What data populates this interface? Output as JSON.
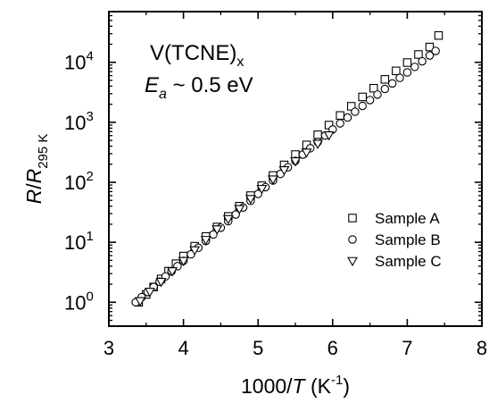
{
  "chart_data": {
    "type": "scatter",
    "x_axis": {
      "label": "1000/T (K⁻¹)",
      "label_parts": {
        "prefix": "1000/",
        "var": "T",
        "suffix_open": " (K",
        "sup": "-1",
        "suffix_close": ")"
      },
      "range": [
        3,
        8
      ],
      "ticks": [
        3,
        4,
        5,
        6,
        7,
        8
      ],
      "tick_labels": [
        "3",
        "4",
        "5",
        "6",
        "7",
        "8"
      ]
    },
    "y_axis": {
      "label": "R/R295 K",
      "label_parts": {
        "var1": "R",
        "slash": "/",
        "var2": "R",
        "sub": "295 K"
      },
      "scale": "log",
      "range": [
        0.4,
        70000
      ],
      "ticks": [
        1,
        10,
        100,
        1000,
        10000
      ],
      "tick_labels": [
        {
          "base": "10",
          "exp": "0"
        },
        {
          "base": "10",
          "exp": "1"
        },
        {
          "base": "10",
          "exp": "2"
        },
        {
          "base": "10",
          "exp": "3"
        },
        {
          "base": "10",
          "exp": "4"
        }
      ]
    },
    "annotations": {
      "material": {
        "text": "V(TCNE)",
        "sub": "x"
      },
      "activation": {
        "var": "E",
        "sub": "a",
        "text": " ~ 0.5 eV"
      }
    },
    "grid": false,
    "legend_position": "right-center",
    "series": [
      {
        "name": "Sample A",
        "marker": "square",
        "points": [
          [
            3.4,
            1.0
          ],
          [
            3.5,
            1.35
          ],
          [
            3.6,
            1.8
          ],
          [
            3.7,
            2.45
          ],
          [
            3.8,
            3.3
          ],
          [
            3.9,
            4.4
          ],
          [
            4.0,
            5.9
          ],
          [
            4.15,
            8.6
          ],
          [
            4.3,
            12.5
          ],
          [
            4.45,
            18
          ],
          [
            4.6,
            27
          ],
          [
            4.75,
            40
          ],
          [
            4.9,
            60
          ],
          [
            5.05,
            88
          ],
          [
            5.2,
            130
          ],
          [
            5.35,
            195
          ],
          [
            5.5,
            290
          ],
          [
            5.65,
            420
          ],
          [
            5.8,
            620
          ],
          [
            5.95,
            900
          ],
          [
            6.1,
            1300
          ],
          [
            6.25,
            1850
          ],
          [
            6.4,
            2650
          ],
          [
            6.55,
            3700
          ],
          [
            6.7,
            5200
          ],
          [
            6.85,
            7200
          ],
          [
            7.0,
            9900
          ],
          [
            7.15,
            13500
          ],
          [
            7.3,
            18000
          ],
          [
            7.42,
            28000
          ]
        ]
      },
      {
        "name": "Sample B",
        "marker": "circle",
        "points": [
          [
            3.36,
            1.0
          ],
          [
            3.44,
            1.22
          ],
          [
            3.52,
            1.48
          ],
          [
            3.6,
            1.8
          ],
          [
            3.68,
            2.2
          ],
          [
            3.76,
            2.7
          ],
          [
            3.84,
            3.3
          ],
          [
            3.92,
            4.0
          ],
          [
            4.0,
            4.9
          ],
          [
            4.1,
            6.3
          ],
          [
            4.2,
            8.1
          ],
          [
            4.3,
            10.5
          ],
          [
            4.4,
            13.5
          ],
          [
            4.5,
            17.5
          ],
          [
            4.6,
            22.5
          ],
          [
            4.7,
            29
          ],
          [
            4.8,
            38
          ],
          [
            4.9,
            49
          ],
          [
            5.0,
            64
          ],
          [
            5.1,
            83
          ],
          [
            5.2,
            107
          ],
          [
            5.3,
            138
          ],
          [
            5.4,
            178
          ],
          [
            5.5,
            228
          ],
          [
            5.6,
            290
          ],
          [
            5.7,
            370
          ],
          [
            5.8,
            470
          ],
          [
            5.9,
            600
          ],
          [
            6.0,
            760
          ],
          [
            6.1,
            960
          ],
          [
            6.2,
            1200
          ],
          [
            6.3,
            1500
          ],
          [
            6.4,
            1880
          ],
          [
            6.5,
            2350
          ],
          [
            6.6,
            2900
          ],
          [
            6.7,
            3600
          ],
          [
            6.8,
            4450
          ],
          [
            6.9,
            5500
          ],
          [
            7.0,
            6800
          ],
          [
            7.1,
            8400
          ],
          [
            7.2,
            10400
          ],
          [
            7.3,
            13000
          ],
          [
            7.38,
            15500
          ]
        ]
      },
      {
        "name": "Sample C",
        "marker": "triangle-down",
        "points": [
          [
            3.42,
            1.05
          ],
          [
            3.55,
            1.5
          ],
          [
            3.7,
            2.2
          ],
          [
            3.85,
            3.3
          ],
          [
            4.0,
            4.9
          ],
          [
            4.15,
            7.4
          ],
          [
            4.3,
            11
          ],
          [
            4.45,
            16.5
          ],
          [
            4.6,
            24.5
          ],
          [
            4.75,
            36
          ],
          [
            4.9,
            53
          ],
          [
            5.05,
            78
          ],
          [
            5.2,
            112
          ],
          [
            5.35,
            160
          ],
          [
            5.5,
            225
          ],
          [
            5.65,
            315
          ],
          [
            5.8,
            440
          ],
          [
            5.95,
            610
          ]
        ]
      }
    ]
  }
}
